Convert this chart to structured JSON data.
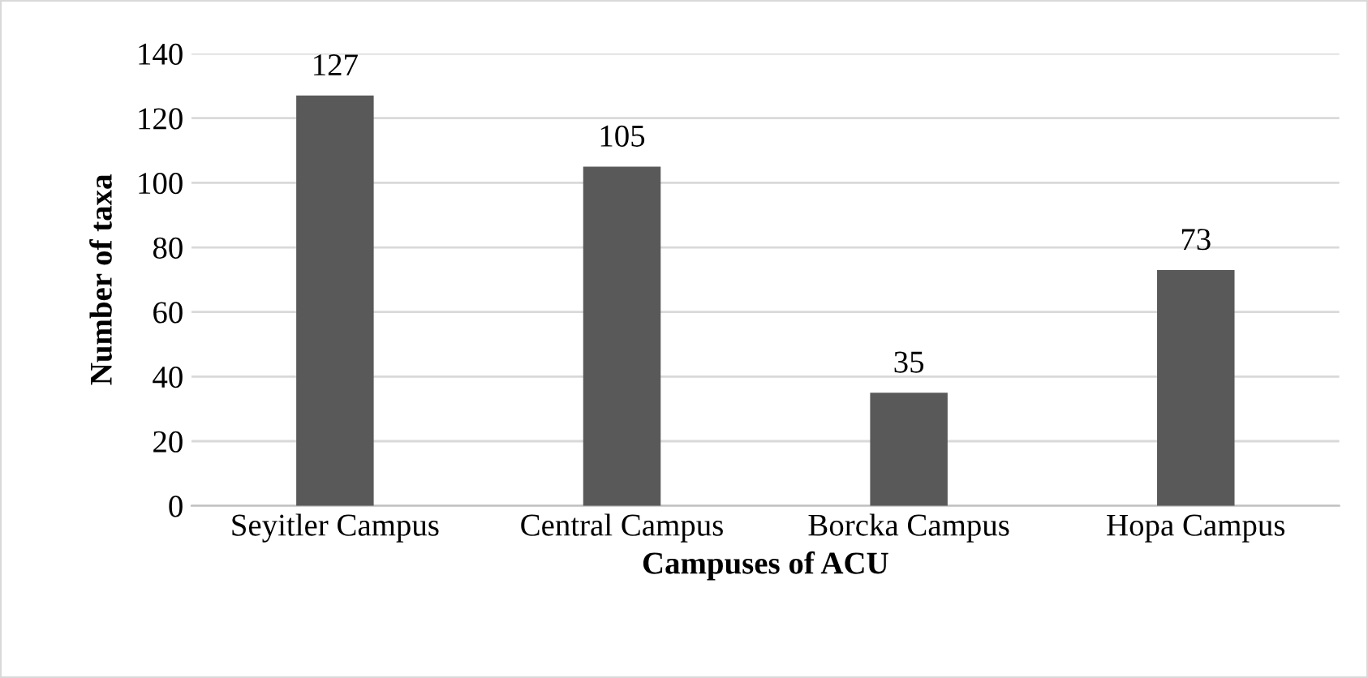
{
  "chart_data": {
    "type": "bar",
    "xlabel": "Campuses of ACU",
    "ylabel": "Number of taxa",
    "categories": [
      "Seyitler Campus",
      "Central Campus",
      "Borcka Campus",
      "Hopa Campus"
    ],
    "values": [
      127,
      105,
      35,
      73
    ],
    "color": "#595959",
    "ylim": [
      0,
      140
    ],
    "yticks": [
      0,
      20,
      40,
      60,
      80,
      100,
      120,
      140
    ],
    "grid": "y",
    "data_labels": true
  }
}
